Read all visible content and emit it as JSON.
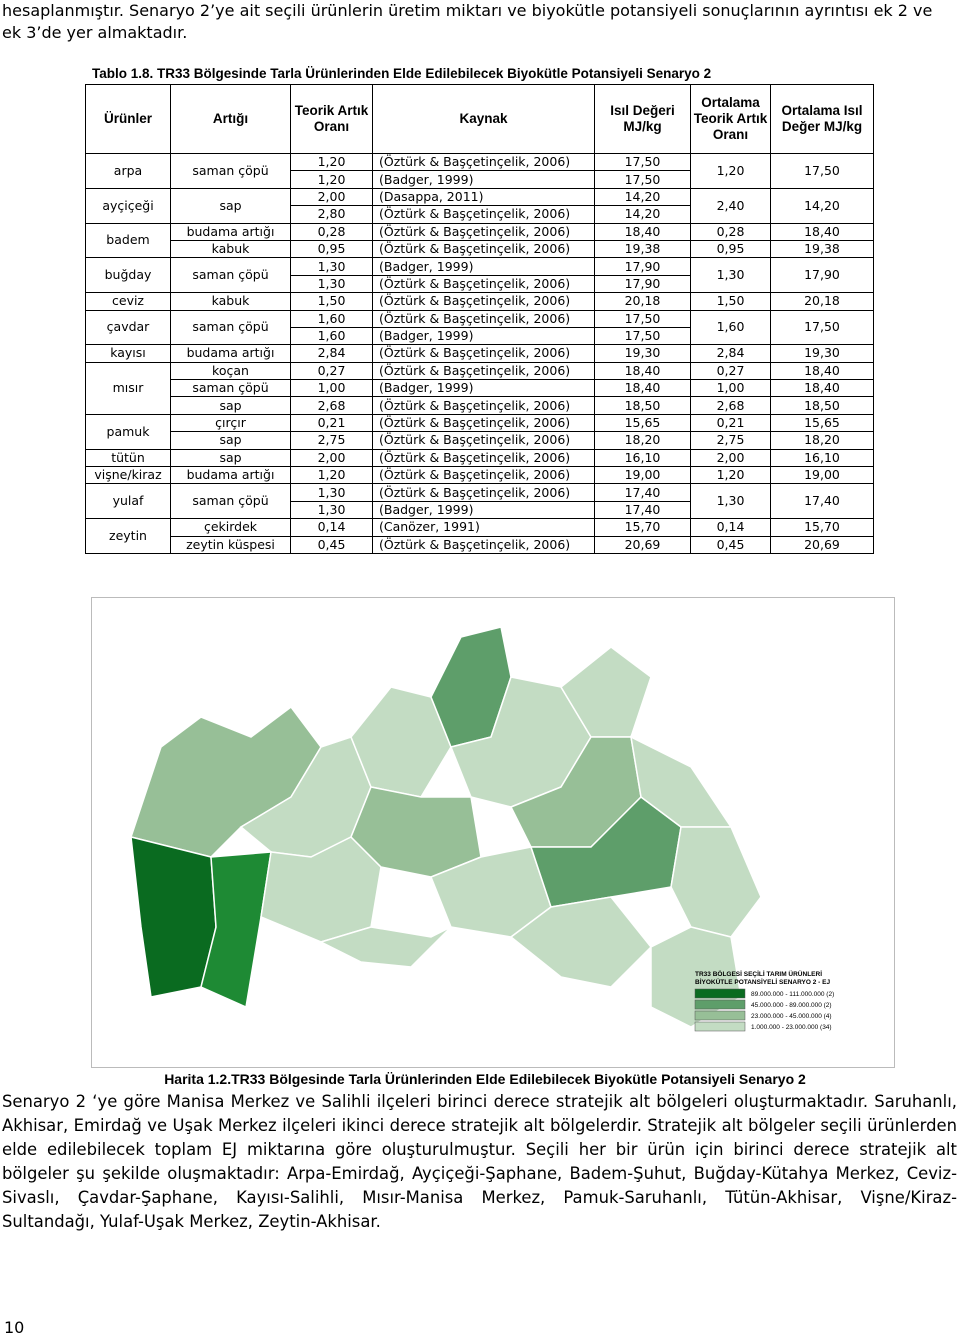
{
  "intro": "hesaplanmıştır. Senaryo 2’ye ait seçili ürünlerin üretim miktarı ve biyokütle potansiyeli sonuçlarının ayrıntısı ek 2 ve ek 3’de yer almaktadır.",
  "table": {
    "caption": "Tablo 1.8. TR33 Bölgesinde Tarla Ürünlerinden Elde Edilebilecek Biyokütle Potansiyeli Senaryo 2",
    "headers": [
      "Ürünler",
      "Artığı",
      "Teorik Artık Oranı",
      "Kaynak",
      "Isıl Değeri MJ/kg",
      "Ortalama Teorik Artık Oranı",
      "Ortalama Isıl Değer MJ/kg"
    ],
    "groups": [
      {
        "product": "arpa",
        "residues": [
          {
            "name": "saman çöpü",
            "rows": [
              [
                "1,20",
                "(Öztürk & Başçetinçelik, 2006)",
                "17,50"
              ],
              [
                "1,20",
                "(Badger, 1999)",
                "17,50"
              ]
            ],
            "avg": [
              "1,20",
              "17,50"
            ]
          }
        ]
      },
      {
        "product": "ayçiçeği",
        "residues": [
          {
            "name": "sap",
            "rows": [
              [
                "2,00",
                "(Dasappa, 2011)",
                "14,20"
              ],
              [
                "2,80",
                "(Öztürk & Başçetinçelik, 2006)",
                "14,20"
              ]
            ],
            "avg": [
              "2,40",
              "14,20"
            ]
          }
        ]
      },
      {
        "product": "badem",
        "residues": [
          {
            "name": "budama artığı",
            "rows": [
              [
                "0,28",
                "(Öztürk & Başçetinçelik, 2006)",
                "18,40"
              ]
            ],
            "avg": [
              "0,28",
              "18,40"
            ]
          },
          {
            "name": "kabuk",
            "rows": [
              [
                "0,95",
                "(Öztürk & Başçetinçelik, 2006)",
                "19,38"
              ]
            ],
            "avg": [
              "0,95",
              "19,38"
            ]
          }
        ]
      },
      {
        "product": "buğday",
        "residues": [
          {
            "name": "saman çöpü",
            "rows": [
              [
                "1,30",
                "(Badger, 1999)",
                "17,90"
              ],
              [
                "1,30",
                "(Öztürk & Başçetinçelik, 2006)",
                "17,90"
              ]
            ],
            "avg": [
              "1,30",
              "17,90"
            ]
          }
        ]
      },
      {
        "product": "ceviz",
        "residues": [
          {
            "name": "kabuk",
            "rows": [
              [
                "1,50",
                "(Öztürk & Başçetinçelik, 2006)",
                "20,18"
              ]
            ],
            "avg": [
              "1,50",
              "20,18"
            ]
          }
        ]
      },
      {
        "product": "çavdar",
        "residues": [
          {
            "name": "saman çöpü",
            "rows": [
              [
                "1,60",
                "(Öztürk & Başçetinçelik, 2006)",
                "17,50"
              ],
              [
                "1,60",
                "(Badger, 1999)",
                "17,50"
              ]
            ],
            "avg": [
              "1,60",
              "17,50"
            ]
          }
        ]
      },
      {
        "product": "kayısı",
        "residues": [
          {
            "name": "budama artığı",
            "rows": [
              [
                "2,84",
                "(Öztürk & Başçetinçelik, 2006)",
                "19,30"
              ]
            ],
            "avg": [
              "2,84",
              "19,30"
            ]
          }
        ]
      },
      {
        "product": "mısır",
        "residues": [
          {
            "name": "koçan",
            "rows": [
              [
                "0,27",
                "(Öztürk & Başçetinçelik, 2006)",
                "18,40"
              ]
            ],
            "avg": [
              "0,27",
              "18,40"
            ]
          },
          {
            "name": "saman çöpü",
            "rows": [
              [
                "1,00",
                "(Badger, 1999)",
                "18,40"
              ]
            ],
            "avg": [
              "1,00",
              "18,40"
            ]
          },
          {
            "name": "sap",
            "rows": [
              [
                "2,68",
                "(Öztürk & Başçetinçelik, 2006)",
                "18,50"
              ]
            ],
            "avg": [
              "2,68",
              "18,50"
            ]
          }
        ]
      },
      {
        "product": "pamuk",
        "residues": [
          {
            "name": "çırçır",
            "rows": [
              [
                "0,21",
                "(Öztürk & Başçetinçelik, 2006)",
                "15,65"
              ]
            ],
            "avg": [
              "0,21",
              "15,65"
            ]
          },
          {
            "name": "sap",
            "rows": [
              [
                "2,75",
                "(Öztürk & Başçetinçelik, 2006)",
                "18,20"
              ]
            ],
            "avg": [
              "2,75",
              "18,20"
            ]
          }
        ]
      },
      {
        "product": "tütün",
        "residues": [
          {
            "name": "sap",
            "rows": [
              [
                "2,00",
                "(Öztürk & Başçetinçelik, 2006)",
                "16,10"
              ]
            ],
            "avg": [
              "2,00",
              "16,10"
            ]
          }
        ]
      },
      {
        "product": "vişne/kiraz",
        "residues": [
          {
            "name": "budama artığı",
            "rows": [
              [
                "1,20",
                "(Öztürk & Başçetinçelik, 2006)",
                "19,00"
              ]
            ],
            "avg": [
              "1,20",
              "19,00"
            ]
          }
        ]
      },
      {
        "product": "yulaf",
        "residues": [
          {
            "name": "saman çöpü",
            "rows": [
              [
                "1,30",
                "(Öztürk & Başçetinçelik, 2006)",
                "17,40"
              ],
              [
                "1,30",
                "(Badger, 1999)",
                "17,40"
              ]
            ],
            "avg": [
              "1,30",
              "17,40"
            ]
          }
        ]
      },
      {
        "product": "zeytin",
        "residues": [
          {
            "name": "çekirdek",
            "rows": [
              [
                "0,14",
                "(Canözer, 1991)",
                "15,70"
              ]
            ],
            "avg": [
              "0,14",
              "15,70"
            ]
          },
          {
            "name": "zeytin küspesi",
            "rows": [
              [
                "0,45",
                "(Öztürk & Başçetinçelik, 2006)",
                "20,69"
              ]
            ],
            "avg": [
              "0,45",
              "20,69"
            ]
          }
        ]
      }
    ]
  },
  "map": {
    "legend_title": [
      "TR33 BÖLGESİ SEÇİLİ TARIM ÜRÜNLERİ",
      "BİYOKÜTLE POTANSİYELİ SENARYO 2 - EJ"
    ],
    "legend": [
      "89.000.000 - 111.000.000  (2)",
      "45.000.000 - 89.000.000  (2)",
      "23.000.000 - 45.000.000  (4)",
      "1.000.000 - 23.000.000  (34)"
    ],
    "caption": "Harita 1.2.TR33 Bölgesinde Tarla Ürünlerinden Elde Edilebilecek Biyokütle Potansiyeli Senaryo 2"
  },
  "body": "Senaryo 2 ‘ye göre Manisa Merkez ve Salihli ilçeleri birinci derece stratejik alt bölgeleri oluşturmaktadır. Saruhanlı, Akhisar, Emirdağ ve Uşak Merkez ilçeleri ikinci derece stratejik alt bölgelerdir. Stratejik alt bölgeler seçili ürünlerden elde edilebilecek toplam EJ miktarına göre oluşturulmuştur. Seçili her bir ürün için birinci derece stratejik alt bölgeler şu şekilde oluşmaktadır: Arpa-Emirdağ, Ayçiçeği-Şaphane, Badem-Şuhut, Buğday-Kütahya Merkez, Ceviz-Sivaslı, Çavdar-Şaphane, Kayısı-Salihli, Mısır-Manisa Merkez, Pamuk-Saruhanlı, Tütün-Akhisar, Vişne/Kiraz-Sultandağı, Yulaf-Uşak Merkez, Zeytin-Akhisar.",
  "page_number": "10"
}
